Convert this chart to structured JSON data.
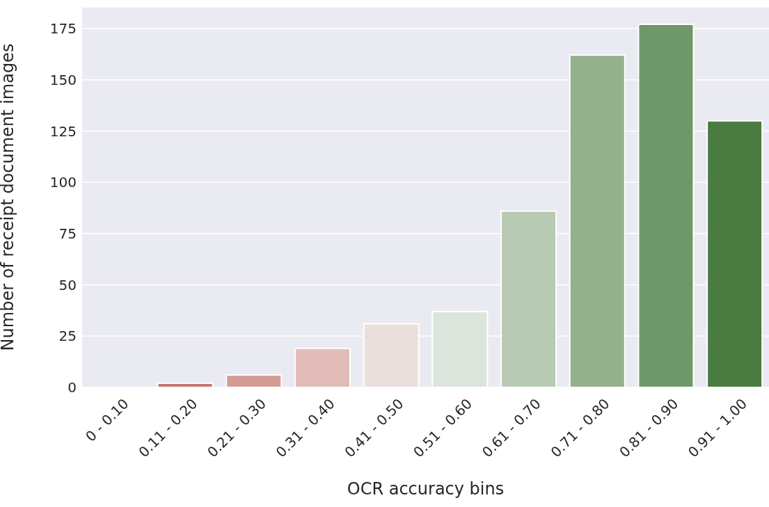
{
  "chart_data": {
    "type": "bar",
    "xlabel": "OCR accuracy bins",
    "ylabel": "Number of receipt document images",
    "categories": [
      "0 - 0.10",
      "0.11 - 0.20",
      "0.21 - 0.30",
      "0.31 - 0.40",
      "0.41 - 0.50",
      "0.51 - 0.60",
      "0.61 - 0.70",
      "0.71 - 0.80",
      "0.81 - 0.90",
      "0.91 - 1.00"
    ],
    "values": [
      0,
      2,
      6,
      19,
      31,
      37,
      86,
      162,
      177,
      130
    ],
    "colors": [
      "#c0584c",
      "#c9776d",
      "#d39c95",
      "#e1bcb8",
      "#ebdfdd",
      "#dce5dc",
      "#b8c9b4",
      "#94b08d",
      "#6e9869",
      "#4a7c41"
    ],
    "ylim": [
      0,
      185.5
    ],
    "yticks": [
      0,
      25,
      50,
      75,
      100,
      125,
      150,
      175
    ],
    "grid": "y"
  }
}
